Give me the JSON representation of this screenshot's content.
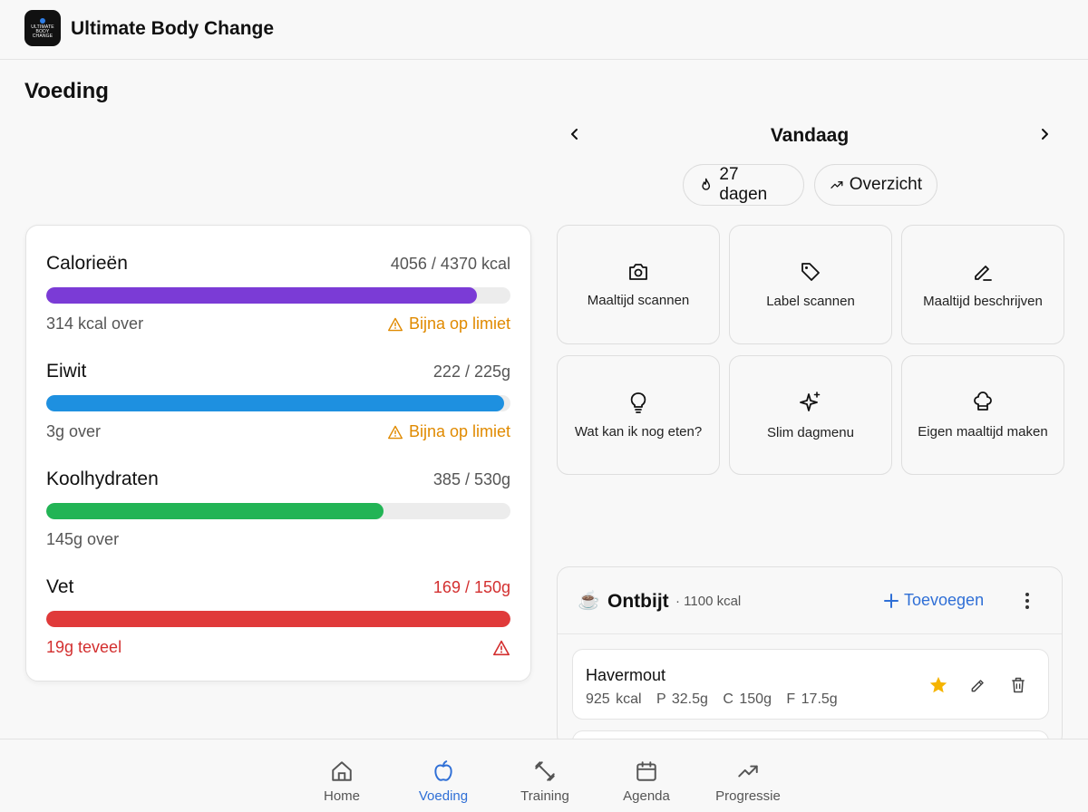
{
  "app": {
    "title": "Ultimate Body Change",
    "logo_text": [
      "ULTIMATE",
      "BODY",
      "CHANGE"
    ]
  },
  "page": {
    "title": "Voeding"
  },
  "date_nav": {
    "label": "Vandaag"
  },
  "chips": {
    "streak": "27 dagen",
    "overview": "Overzicht"
  },
  "macros": [
    {
      "name": "Calorieën",
      "value": "4056 / 4370 kcal",
      "remaining": "314 kcal over",
      "warning": "Bijna op limiet",
      "progress": 0.928,
      "color": "#7b3bd6",
      "over": false
    },
    {
      "name": "Eiwit",
      "value": "222 / 225g",
      "remaining": "3g over",
      "warning": "Bijna op limiet",
      "progress": 0.987,
      "color": "#1e90e0",
      "over": false
    },
    {
      "name": "Koolhydraten",
      "value": "385 / 530g",
      "remaining": "145g over",
      "warning": "",
      "progress": 0.726,
      "color": "#22b455",
      "over": false
    },
    {
      "name": "Vet",
      "value": "169 / 150g",
      "remaining": "19g teveel",
      "warning": "",
      "progress": 1.0,
      "color": "#e03a3a",
      "over": true
    }
  ],
  "actions": [
    {
      "label": "Maaltijd scannen",
      "icon": "camera-icon"
    },
    {
      "label": "Label scannen",
      "icon": "tag-icon"
    },
    {
      "label": "Maaltijd beschrijven",
      "icon": "pencil-icon"
    },
    {
      "label": "Wat kan ik nog eten?",
      "icon": "lightbulb-icon"
    },
    {
      "label": "Slim dagmenu",
      "icon": "sparkles-icon"
    },
    {
      "label": "Eigen maaltijd maken",
      "icon": "chef-hat-icon"
    }
  ],
  "meal": {
    "emoji": "☕",
    "name": "Ontbijt",
    "kcal": "· 1100 kcal",
    "add_label": "Toevoegen",
    "items": [
      {
        "name": "Havermout",
        "kcal": "925 kcal",
        "protein": "P 32.5g",
        "carbs": "C 150g",
        "fat": "F 17.5g",
        "favorite": true
      }
    ]
  },
  "bottom_nav": [
    {
      "label": "Home",
      "icon": "home-icon",
      "active": false
    },
    {
      "label": "Voeding",
      "icon": "apple-icon",
      "active": true
    },
    {
      "label": "Training",
      "icon": "dumbbell-icon",
      "active": false
    },
    {
      "label": "Agenda",
      "icon": "calendar-icon",
      "active": false
    },
    {
      "label": "Progressie",
      "icon": "trending-up-icon",
      "active": false
    }
  ],
  "colors": {
    "accent": "#2f6fd6",
    "warning": "#e08a00",
    "danger": "#d32f2f",
    "favorite": "#f5b400"
  }
}
